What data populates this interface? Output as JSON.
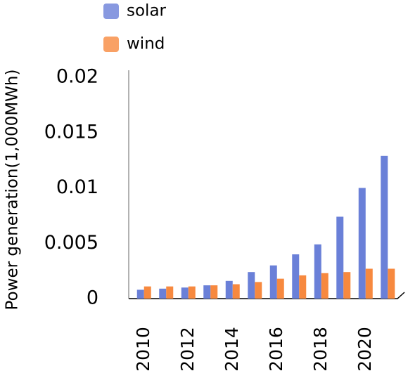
{
  "chart_data": {
    "type": "bar",
    "y_label": "Power generation(1,000MWh)",
    "categories": [
      "2010",
      null,
      "2012",
      null,
      "2014",
      null,
      "2016",
      null,
      "2018",
      null,
      "2020",
      null
    ],
    "series": [
      {
        "name": "solar",
        "color": "#6a80d8",
        "values": [
          0.0008,
          0.0009,
          0.001,
          0.0012,
          0.0016,
          0.0024,
          0.003,
          0.004,
          0.0049,
          0.0074,
          0.01,
          0.0129
        ]
      },
      {
        "name": "wind",
        "color": "#f7893f",
        "values": [
          0.0011,
          0.0011,
          0.0011,
          0.0012,
          0.0013,
          0.0015,
          0.0018,
          0.0021,
          0.0023,
          0.0024,
          0.0027,
          0.0027
        ]
      }
    ],
    "ylim": [
      0,
      0.02
    ],
    "yticks": [
      0,
      0.005,
      0.01,
      0.015,
      0.02
    ],
    "grid": false
  }
}
